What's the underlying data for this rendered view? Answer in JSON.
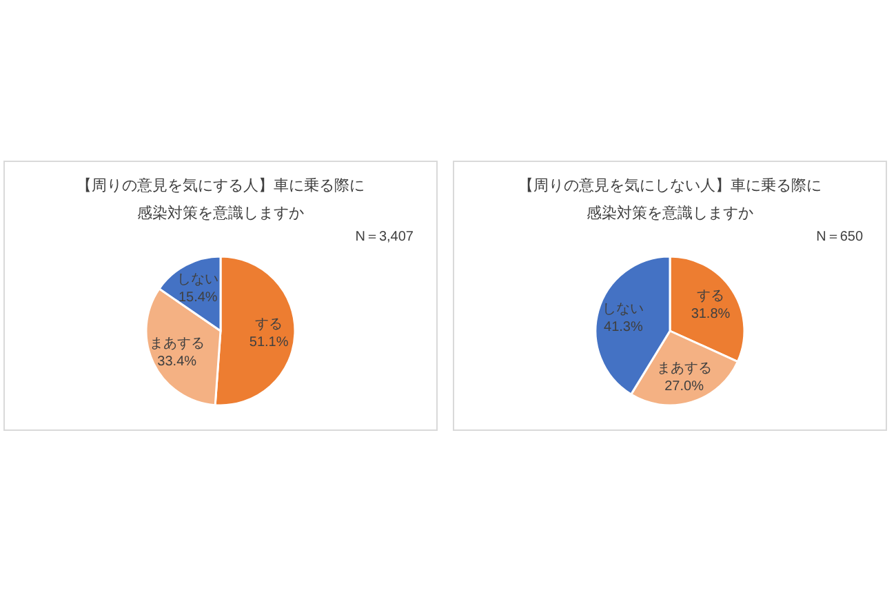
{
  "chart_data": [
    {
      "type": "pie",
      "title": "【周りの意見を気にする人】車に乗る際に",
      "subtitle": "感染対策を意識しますか",
      "annotations": [
        "N＝3,407"
      ],
      "categories": [
        "する",
        "まあする",
        "しない"
      ],
      "values": [
        51.1,
        33.4,
        15.4
      ],
      "colors": [
        "#ed7d31",
        "#f4b183",
        "#4472c4"
      ],
      "value_labels": [
        "51.1%",
        "33.4%",
        "15.4%"
      ]
    },
    {
      "type": "pie",
      "title": "【周りの意見を気にしない人】車に乗る際に",
      "subtitle": "感染対策を意識しますか",
      "annotations": [
        "N＝650"
      ],
      "categories": [
        "する",
        "まあする",
        "しない"
      ],
      "values": [
        31.8,
        27.0,
        41.3
      ],
      "colors": [
        "#ed7d31",
        "#f4b183",
        "#4472c4"
      ],
      "value_labels": [
        "31.8%",
        "27.0%",
        "41.3%"
      ]
    }
  ]
}
